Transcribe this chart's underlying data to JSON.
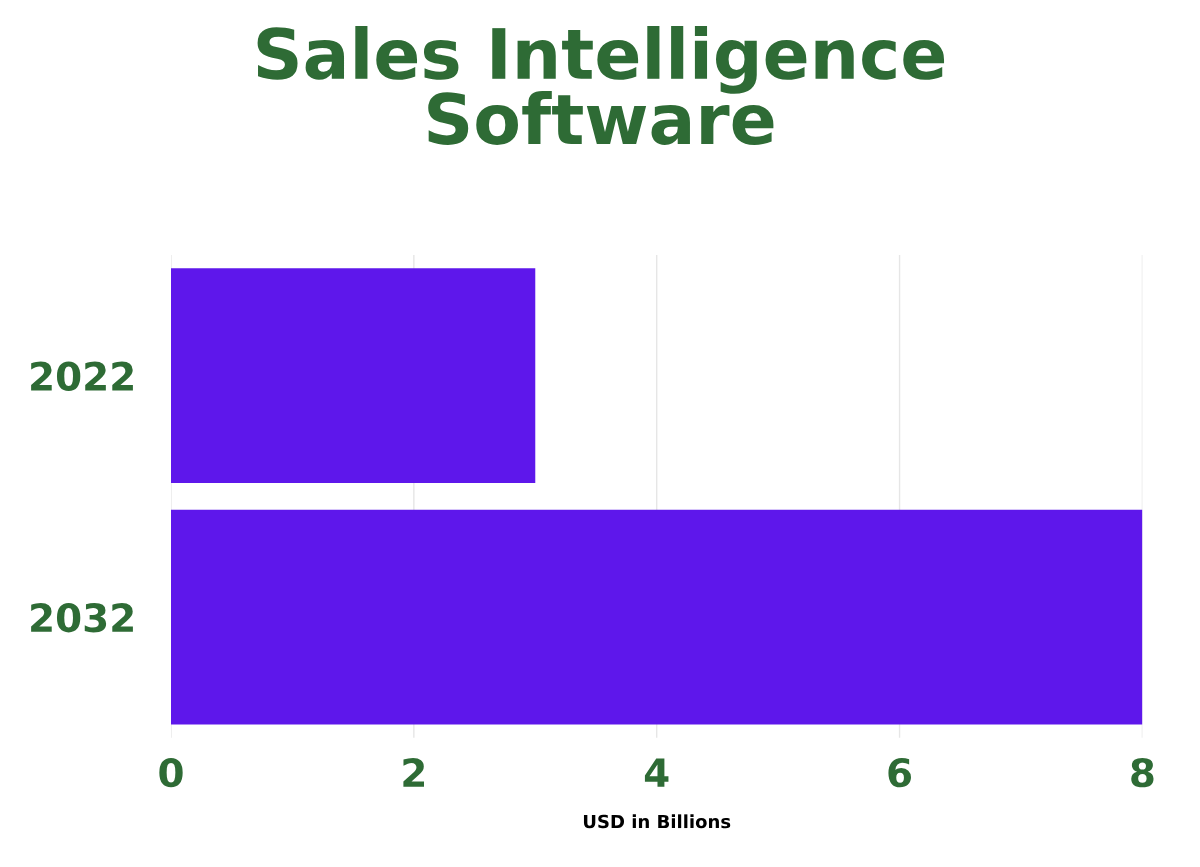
{
  "chart_data": {
    "type": "bar",
    "orientation": "horizontal",
    "title": "Sales Intelligence\nSoftware",
    "xlabel": "USD in Billions",
    "categories": [
      "2022",
      "2032"
    ],
    "values": [
      3.0,
      8.0
    ],
    "color": "#5e17eb",
    "xlim": [
      0,
      8
    ],
    "xticks": [
      0,
      2,
      4,
      6,
      8
    ],
    "grid": "x",
    "legend": false
  }
}
